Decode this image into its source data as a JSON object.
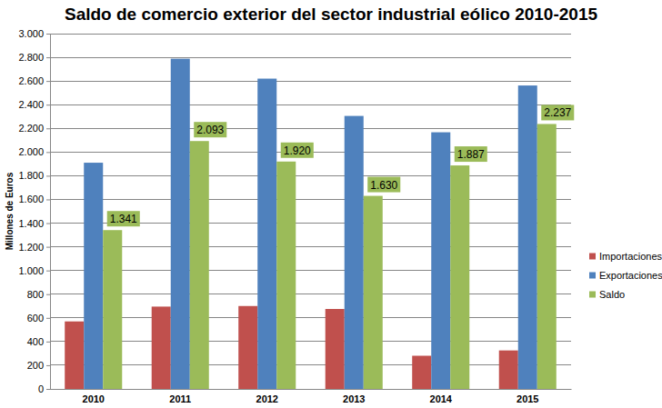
{
  "chart_data": {
    "type": "bar",
    "title": "Saldo de comercio exterior del sector industrial eólico 2010-2015",
    "y_label": "Millones de Euros",
    "categories": [
      "2010",
      "2011",
      "2012",
      "2013",
      "2014",
      "2015"
    ],
    "series": [
      {
        "name": "Importaciones",
        "color": "#c0504d",
        "values": [
          570,
          695,
          700,
          675,
          280,
          325
        ]
      },
      {
        "name": "Exportaciones",
        "color": "#4f81bd",
        "values": [
          1910,
          2788,
          2620,
          2305,
          2167,
          2562
        ]
      },
      {
        "name": "Saldo",
        "color": "#9bbb59",
        "values": [
          1341,
          2093,
          1920,
          1630,
          1887,
          2237
        ],
        "value_labels": [
          "1.341",
          "2.093",
          "1.920",
          "1.630",
          "1.887",
          "2.237"
        ],
        "data_labels": true
      }
    ],
    "ylim": [
      0,
      3000
    ],
    "yticks": [
      0,
      200,
      400,
      600,
      800,
      {
        "value": 1000,
        "label": "1.000"
      },
      {
        "value": 1200,
        "label": "1.200"
      },
      {
        "value": 1400,
        "label": "1.400"
      },
      {
        "value": 1600,
        "label": "1.600"
      },
      {
        "value": 1800,
        "label": "1.800"
      },
      {
        "value": 2000,
        "label": "2.000"
      },
      {
        "value": 2200,
        "label": "2.200"
      },
      {
        "value": 2400,
        "label": "2.400"
      },
      {
        "value": 2600,
        "label": "2.600"
      },
      {
        "value": 2800,
        "label": "2.800"
      },
      {
        "value": 3000,
        "label": "3.000"
      }
    ],
    "grid": true,
    "legend": "right"
  }
}
